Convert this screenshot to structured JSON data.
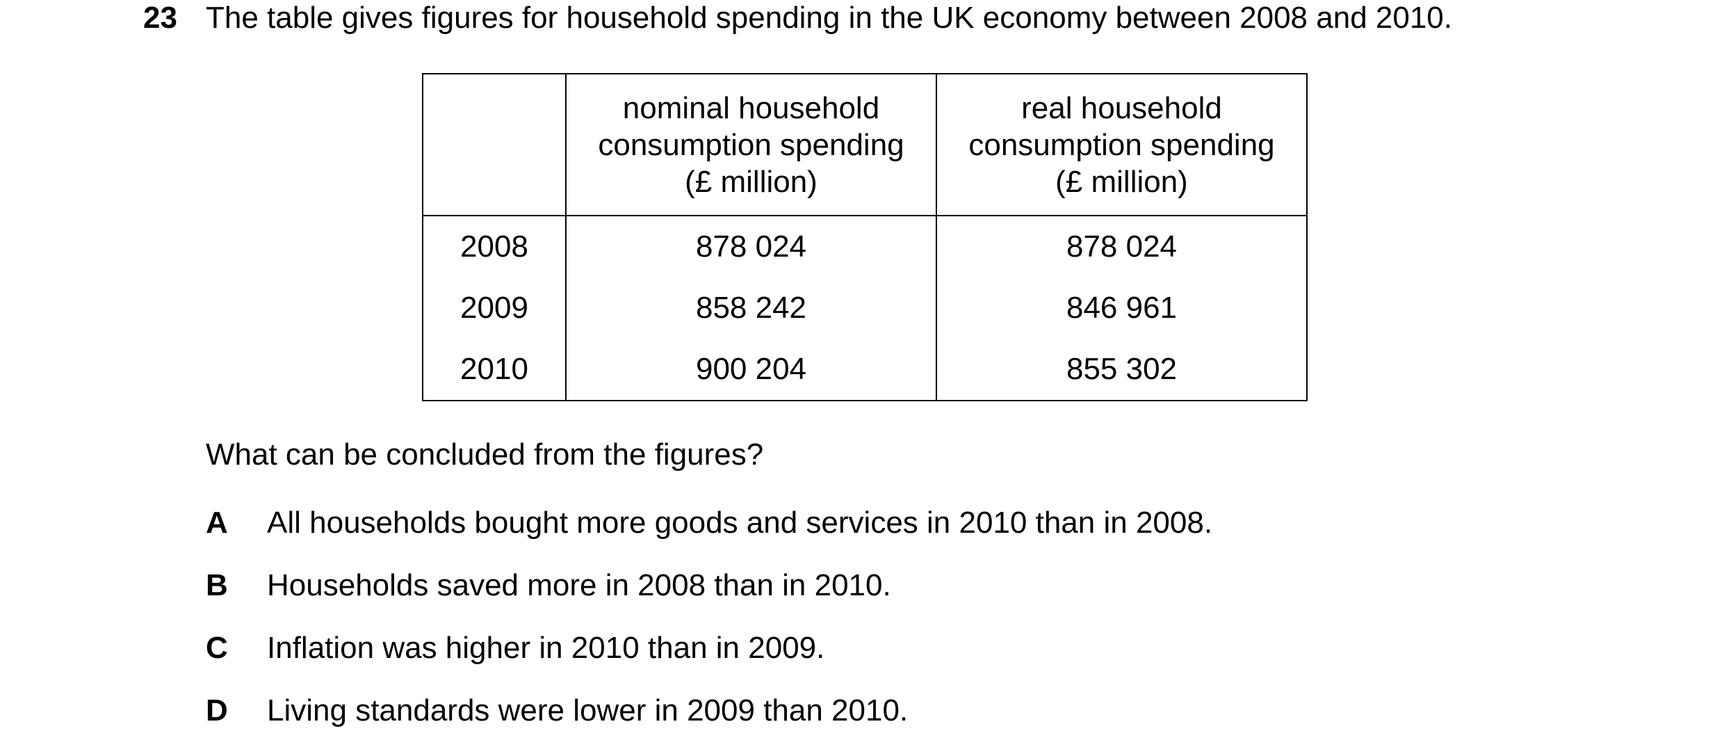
{
  "question": {
    "number": "23",
    "stem": "The table gives figures for household spending in the UK economy between 2008 and 2010."
  },
  "table": {
    "headers": [
      "",
      "nominal household consumption spending (£ million)",
      "real household consumption spending (£ million)"
    ],
    "header_lines": {
      "nominal": [
        "nominal household",
        "consumption spending",
        "(£ million)"
      ],
      "real": [
        "real household",
        "consumption spending",
        "(£ million)"
      ]
    },
    "rows": [
      {
        "year": "2008",
        "nominal": "878 024",
        "real": "878 024"
      },
      {
        "year": "2009",
        "nominal": "858 242",
        "real": "846 961"
      },
      {
        "year": "2010",
        "nominal": "900 204",
        "real": "855 302"
      }
    ]
  },
  "prompt": "What can be concluded from the figures?",
  "options": [
    {
      "letter": "A",
      "text": "All households bought more goods and services in 2010 than in 2008."
    },
    {
      "letter": "B",
      "text": "Households saved more in 2008 than in 2010."
    },
    {
      "letter": "C",
      "text": "Inflation was higher in 2010 than in 2009."
    },
    {
      "letter": "D",
      "text": "Living standards were lower in 2009 than 2010."
    }
  ]
}
